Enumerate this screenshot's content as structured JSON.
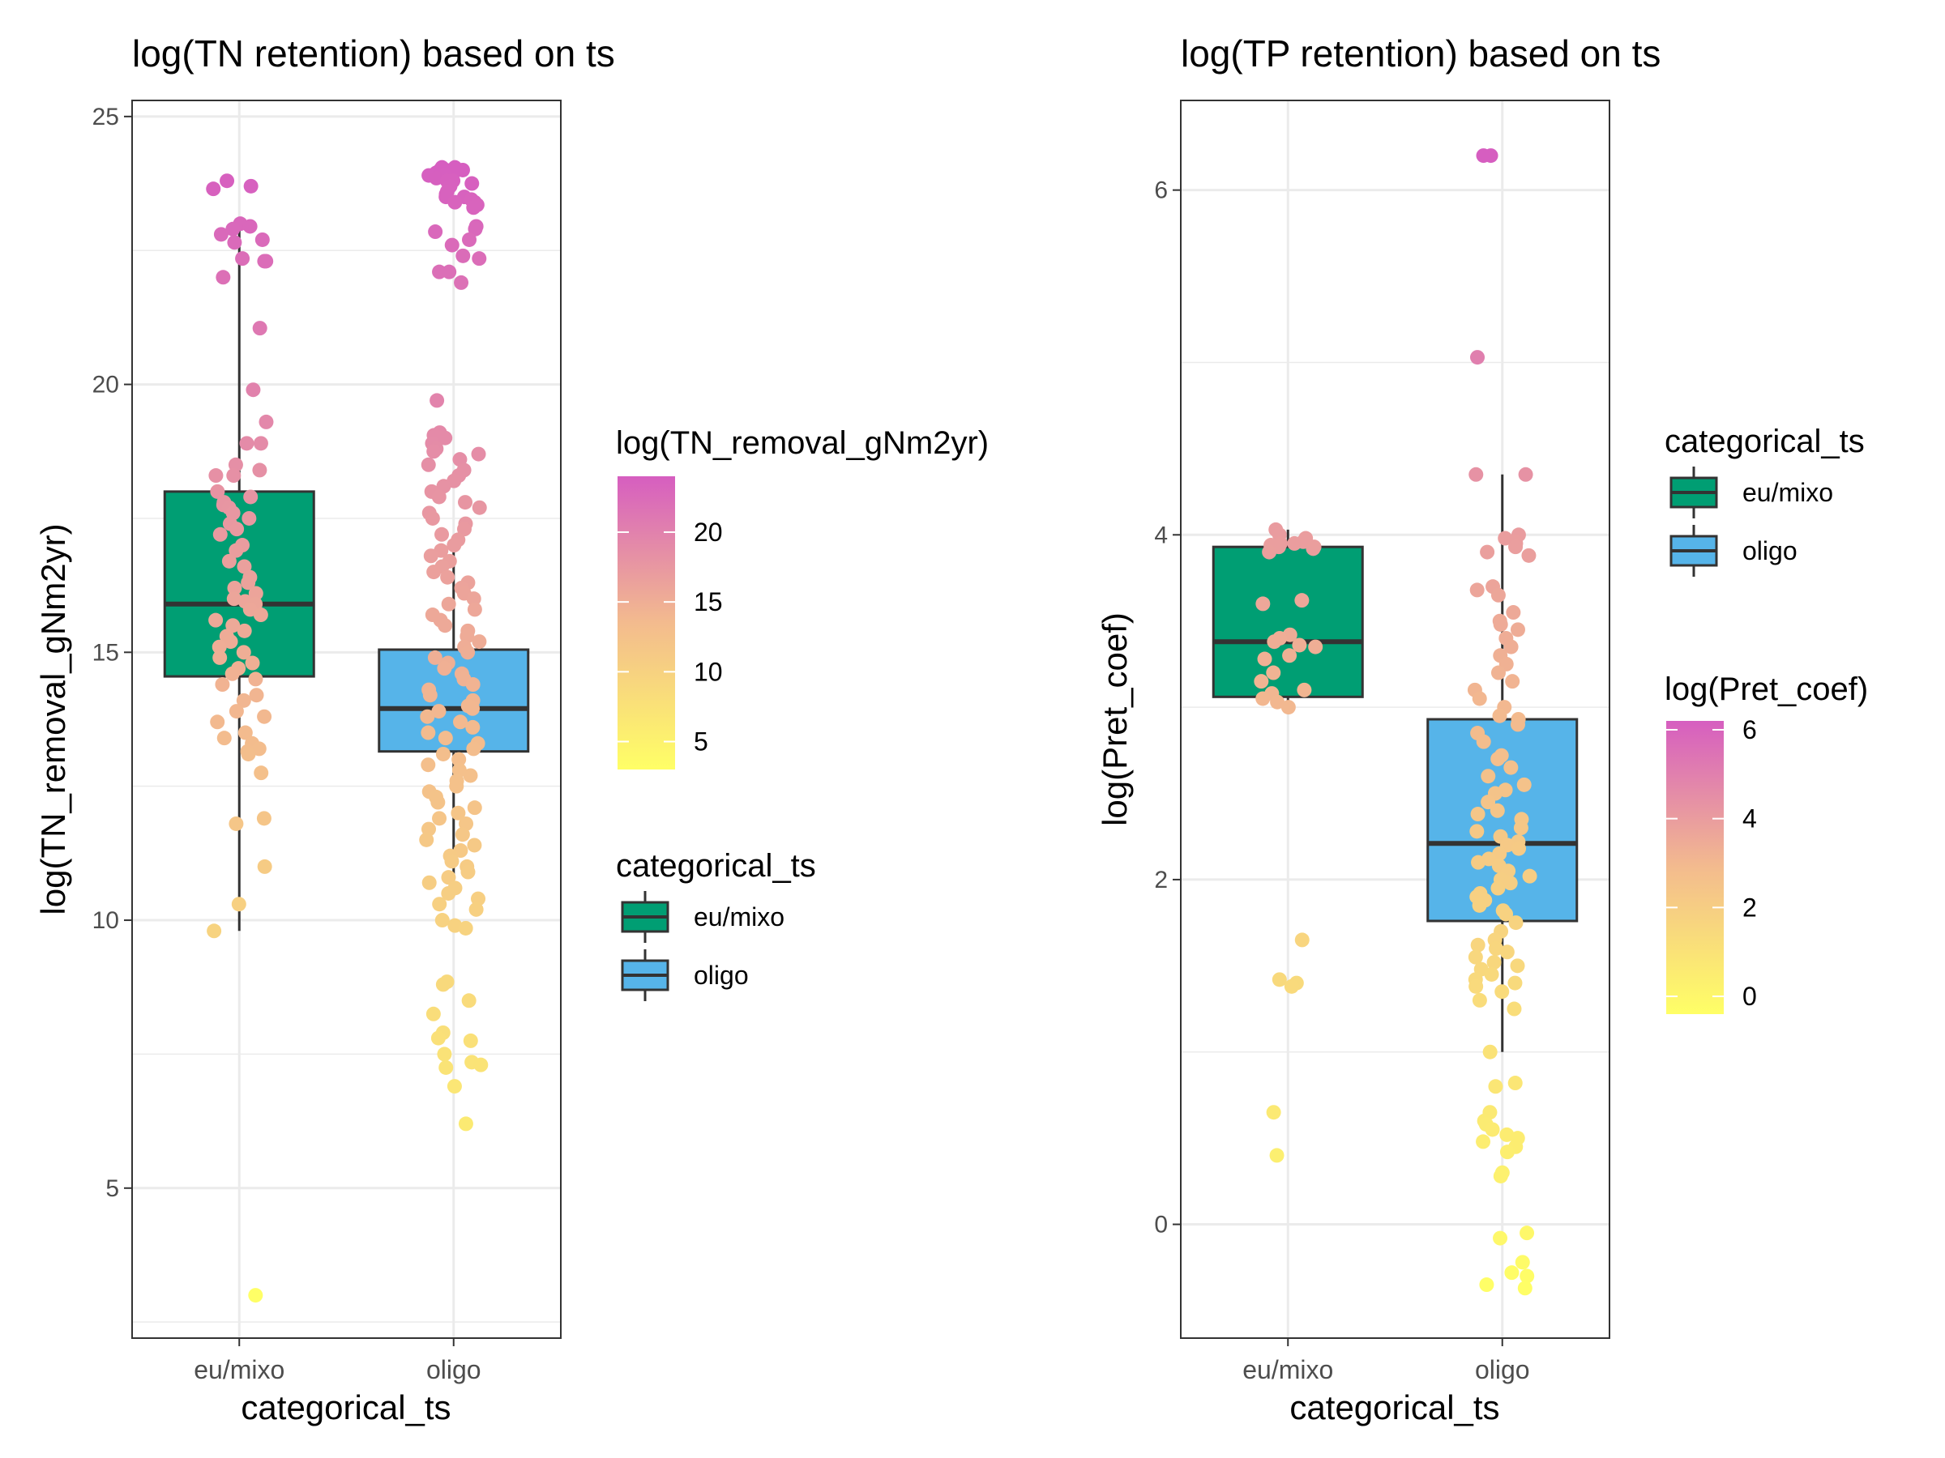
{
  "chart_data": [
    {
      "type": "box",
      "title": "log(TN retention) based on ts",
      "xlabel": "categorical_ts",
      "ylabel": "log(TN_removal_gNm2yr)",
      "categories": [
        "eu/mixo",
        "oligo"
      ],
      "ylim": [
        2.2,
        25.3
      ],
      "yticks": [
        5,
        10,
        15,
        20,
        25
      ],
      "grid": true,
      "fills": [
        "#009E73",
        "#56B4E9"
      ],
      "boxes": [
        {
          "category": "eu/mixo",
          "q1": 14.55,
          "median": 15.9,
          "q3": 18.0,
          "whisker_low": 9.8,
          "whisker_high": 23.0
        },
        {
          "category": "oligo",
          "q1": 13.15,
          "median": 13.95,
          "q3": 15.05,
          "whisker_low": 10.5,
          "whisker_high": 17.0
        }
      ],
      "legends": {
        "colorbar": {
          "title": "log(TN_removal_gNm2yr)",
          "ticks": [
            5,
            10,
            15,
            20
          ],
          "range": [
            3.0,
            24.0
          ],
          "low_color": "#FFFF66",
          "mid_color": "#F3BB8E",
          "high_color": "#D65EC0"
        },
        "fill": {
          "title": "categorical_ts",
          "items": [
            "eu/mixo",
            "oligo"
          ]
        }
      },
      "points": [
        {
          "category": "eu/mixo",
          "values": [
            23.8,
            23.7,
            23.65,
            23.0,
            22.95,
            22.9,
            22.8,
            22.7,
            22.65,
            22.35,
            22.3,
            22.3,
            22.0,
            21.05,
            19.9,
            19.3,
            18.9,
            18.9,
            18.5,
            18.4,
            18.3,
            18.3,
            18.0,
            17.9,
            17.8,
            17.75,
            17.7,
            17.6,
            17.5,
            17.4,
            17.3,
            17.2,
            17.0,
            16.9,
            16.7,
            16.6,
            16.4,
            16.3,
            16.2,
            16.1,
            16.0,
            15.95,
            15.9,
            15.8,
            15.7,
            15.6,
            15.5,
            15.4,
            15.3,
            15.2,
            15.1,
            15.0,
            14.9,
            14.8,
            14.7,
            14.6,
            14.5,
            14.4,
            14.2,
            14.1,
            13.9,
            13.8,
            13.7,
            13.5,
            13.4,
            13.3,
            13.2,
            13.15,
            13.1,
            12.75,
            11.9,
            11.8,
            11.0,
            10.3,
            9.8,
            3.0
          ]
        },
        {
          "category": "oligo",
          "values": [
            24.05,
            24.05,
            24.0,
            24.0,
            24.0,
            24.0,
            24.0,
            23.95,
            23.95,
            23.9,
            23.9,
            23.85,
            23.8,
            23.8,
            23.75,
            23.7,
            23.6,
            23.55,
            23.5,
            23.5,
            23.45,
            23.4,
            23.4,
            23.35,
            23.3,
            22.95,
            22.9,
            22.85,
            22.7,
            22.6,
            22.4,
            22.35,
            22.1,
            22.1,
            21.9,
            19.7,
            19.1,
            19.05,
            19.0,
            19.0,
            18.9,
            18.8,
            18.75,
            18.7,
            18.6,
            18.5,
            18.4,
            18.3,
            18.2,
            18.1,
            18.0,
            17.9,
            17.8,
            17.7,
            17.6,
            17.5,
            17.4,
            17.3,
            17.2,
            17.1,
            17.0,
            16.9,
            16.8,
            16.7,
            16.6,
            16.5,
            16.4,
            16.3,
            16.2,
            16.1,
            16.0,
            15.9,
            15.8,
            15.7,
            15.6,
            15.5,
            15.4,
            15.3,
            15.2,
            15.1,
            15.0,
            14.9,
            14.8,
            14.7,
            14.6,
            14.5,
            14.4,
            14.3,
            14.2,
            14.1,
            14.0,
            13.95,
            13.9,
            13.8,
            13.7,
            13.6,
            13.5,
            13.4,
            13.3,
            13.2,
            13.1,
            13.0,
            12.9,
            12.8,
            12.7,
            12.6,
            12.5,
            12.4,
            12.3,
            12.2,
            12.1,
            12.0,
            11.9,
            11.8,
            11.7,
            11.6,
            11.5,
            11.4,
            11.3,
            11.2,
            11.1,
            11.0,
            10.9,
            10.8,
            10.7,
            10.6,
            10.5,
            10.4,
            10.3,
            10.2,
            10.0,
            9.9,
            9.85,
            8.85,
            8.8,
            8.5,
            8.25,
            7.9,
            7.8,
            7.75,
            7.5,
            7.35,
            7.3,
            7.25,
            6.9,
            6.2
          ]
        }
      ]
    },
    {
      "type": "box",
      "title": "log(TP retention) based on ts",
      "xlabel": "categorical_ts",
      "ylabel": "log(Pret_coef)",
      "categories": [
        "eu/mixo",
        "oligo"
      ],
      "ylim": [
        -0.66,
        6.52
      ],
      "yticks": [
        0,
        2,
        4,
        6
      ],
      "grid": true,
      "fills": [
        "#009E73",
        "#56B4E9"
      ],
      "boxes": [
        {
          "category": "eu/mixo",
          "q1": 3.06,
          "median": 3.38,
          "q3": 3.93,
          "whisker_low": 3.0,
          "whisker_high": 4.03
        },
        {
          "category": "oligo",
          "q1": 1.76,
          "median": 2.21,
          "q3": 2.93,
          "whisker_low": 1.0,
          "whisker_high": 4.35
        }
      ],
      "legends": {
        "fill": {
          "title": "categorical_ts",
          "items": [
            "eu/mixo",
            "oligo"
          ]
        },
        "colorbar": {
          "title": "log(Pret_coef)",
          "ticks": [
            0,
            2,
            4,
            6
          ],
          "range": [
            -0.4,
            6.2
          ],
          "low_color": "#FFFF66",
          "mid_color": "#F3BB8E",
          "high_color": "#D65EC0"
        }
      },
      "points": [
        {
          "category": "eu/mixo",
          "values": [
            4.03,
            4.0,
            3.98,
            3.96,
            3.95,
            3.95,
            3.94,
            3.93,
            3.93,
            3.92,
            3.9,
            3.62,
            3.6,
            3.42,
            3.4,
            3.38,
            3.36,
            3.35,
            3.3,
            3.28,
            3.2,
            3.15,
            3.1,
            3.08,
            3.05,
            3.03,
            3.0,
            1.65,
            1.42,
            1.4,
            1.38,
            0.65,
            0.4
          ]
        },
        {
          "category": "oligo",
          "values": [
            6.2,
            6.2,
            5.03,
            4.35,
            4.35,
            4.0,
            3.98,
            3.96,
            3.95,
            3.93,
            3.9,
            3.88,
            3.7,
            3.68,
            3.65,
            3.55,
            3.5,
            3.48,
            3.45,
            3.4,
            3.35,
            3.3,
            3.25,
            3.2,
            3.15,
            3.1,
            3.05,
            3.0,
            2.95,
            2.93,
            2.9,
            2.85,
            2.8,
            2.72,
            2.7,
            2.65,
            2.6,
            2.55,
            2.52,
            2.5,
            2.45,
            2.4,
            2.38,
            2.35,
            2.3,
            2.28,
            2.25,
            2.22,
            2.2,
            2.18,
            2.15,
            2.12,
            2.1,
            2.08,
            2.05,
            2.02,
            2.0,
            1.98,
            1.95,
            1.92,
            1.9,
            1.88,
            1.85,
            1.82,
            1.8,
            1.75,
            1.7,
            1.65,
            1.62,
            1.6,
            1.58,
            1.55,
            1.52,
            1.5,
            1.48,
            1.45,
            1.42,
            1.4,
            1.38,
            1.35,
            1.3,
            1.25,
            1.0,
            0.82,
            0.8,
            0.65,
            0.6,
            0.58,
            0.55,
            0.52,
            0.5,
            0.48,
            0.45,
            0.42,
            0.3,
            0.28,
            -0.05,
            -0.08,
            -0.22,
            -0.28,
            -0.3,
            -0.35,
            -0.37
          ]
        }
      ]
    }
  ]
}
